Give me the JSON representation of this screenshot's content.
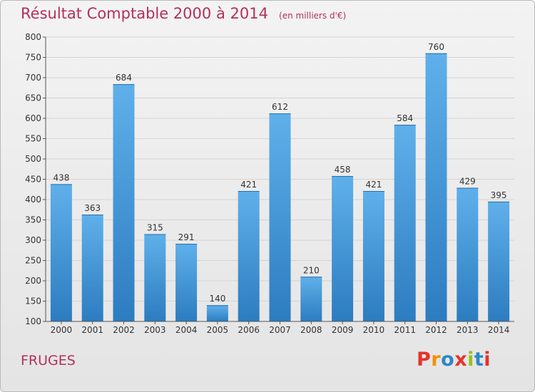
{
  "header": {
    "title": "Résultat Comptable 2000 à 2014",
    "unit": "(en milliers d'€)"
  },
  "footer": {
    "city": "FRUGES",
    "logo_text": "Proxiti"
  },
  "colors": {
    "title": "#b3305a",
    "bar_top": "#5fb0ea",
    "bar_bottom": "#2c7cc0",
    "logo_letters": [
      "#e5332a",
      "#f39200",
      "#2c87c8",
      "#e5332a",
      "#95c11f",
      "#2c87c8",
      "#e5332a"
    ]
  },
  "chart_data": {
    "type": "bar",
    "title": "Résultat Comptable 2000 à 2014",
    "categories": [
      "2000",
      "2001",
      "2002",
      "2003",
      "2004",
      "2005",
      "2006",
      "2007",
      "2008",
      "2009",
      "2010",
      "2011",
      "2012",
      "2013",
      "2014"
    ],
    "values": [
      438,
      363,
      684,
      315,
      291,
      140,
      421,
      612,
      210,
      458,
      421,
      584,
      760,
      429,
      395
    ],
    "ylim": [
      100,
      800
    ],
    "yticks": [
      100,
      150,
      200,
      250,
      300,
      350,
      400,
      450,
      500,
      550,
      600,
      650,
      700,
      750,
      800
    ],
    "grid": true,
    "data_labels": true
  }
}
